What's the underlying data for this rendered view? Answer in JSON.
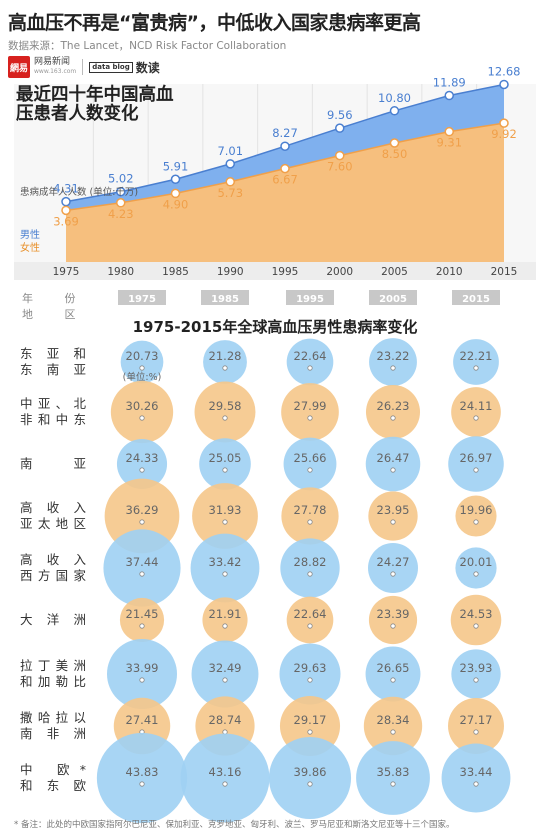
{
  "header": {
    "title": "高血压不再是“富贵病”，中低收入国家患病率更高",
    "source": "数据来源：The Lancet，NCD Risk Factor Collaboration",
    "logo_mark": "網易",
    "logo_name": "网易新闻",
    "logo_url": "www.163.com",
    "datablog_mark": "data blog",
    "datablog_name": "数读"
  },
  "colors": {
    "male": "#4a7fd0",
    "male_fill": "#7fb0ee",
    "female": "#f0a04a",
    "female_fill": "#f6bf7e",
    "bubble_blue": "#9fd0f3",
    "bubble_orange": "#f5c68a",
    "year_tab": "#c8c8c8"
  },
  "chart_data": [
    {
      "type": "area",
      "title": "最近四十年中国高血压患者人数变化",
      "ylabel": "患病成年人人数 (单位:千万)",
      "x": [
        "1975",
        "1980",
        "1985",
        "1990",
        "1995",
        "2000",
        "2005",
        "2010",
        "2015"
      ],
      "series": [
        {
          "name": "男性",
          "values": [
            4.31,
            5.02,
            5.91,
            7.01,
            8.27,
            9.56,
            10.8,
            11.89,
            12.68
          ],
          "labels": [
            "4.31",
            "5.02",
            "5.91",
            "7.01",
            "8.27",
            "9.56",
            "10.80",
            "11.89",
            "12.68"
          ]
        },
        {
          "name": "女性",
          "values": [
            3.69,
            4.23,
            4.9,
            5.73,
            6.67,
            7.6,
            8.5,
            9.31,
            9.92
          ],
          "labels": [
            "3.69",
            "4.23",
            "4.90",
            "5.73",
            "6.67",
            "7.60",
            "8.50",
            "9.31",
            "9.92"
          ]
        }
      ],
      "ylim": [
        0,
        14
      ],
      "stacked": false
    },
    {
      "type": "bubble",
      "title": "1975-2015年全球高血压男性患病率变化",
      "unit_note": "(单位:%)",
      "header_year": "年 份",
      "header_region": "地 区",
      "years": [
        "1975",
        "1985",
        "1995",
        "2005",
        "2015"
      ],
      "regions": [
        {
          "name": "东亚和东南亚",
          "lines": [
            "东 亚 和",
            "东 南 亚"
          ],
          "color": "blue",
          "values": [
            20.73,
            21.28,
            22.64,
            23.22,
            22.21
          ],
          "labels": [
            "20.73",
            "21.28",
            "22.64",
            "23.22",
            "22.21"
          ]
        },
        {
          "name": "中亚、北非和中东",
          "lines": [
            "中亚、北",
            "非和中东"
          ],
          "color": "orange",
          "values": [
            30.26,
            29.58,
            27.99,
            26.23,
            24.11
          ],
          "labels": [
            "30.26",
            "29.58",
            "27.99",
            "26.23",
            "24.11"
          ]
        },
        {
          "name": "南亚",
          "lines": [
            "南 亚"
          ],
          "color": "blue",
          "values": [
            24.33,
            25.05,
            25.66,
            26.47,
            26.97
          ],
          "labels": [
            "24.33",
            "25.05",
            "25.66",
            "26.47",
            "26.97"
          ]
        },
        {
          "name": "高收入亚太地区",
          "lines": [
            "高 收 入",
            "亚太地区"
          ],
          "color": "orange",
          "values": [
            36.29,
            31.93,
            27.78,
            23.95,
            19.96
          ],
          "labels": [
            "36.29",
            "31.93",
            "27.78",
            "23.95",
            "19.96"
          ]
        },
        {
          "name": "高收入西方国家",
          "lines": [
            "高 收 入",
            "西方国家"
          ],
          "color": "blue",
          "values": [
            37.44,
            33.42,
            28.82,
            24.27,
            20.01
          ],
          "labels": [
            "37.44",
            "33.42",
            "28.82",
            "24.27",
            "20.01"
          ]
        },
        {
          "name": "大洋洲",
          "lines": [
            "大 洋 洲"
          ],
          "color": "orange",
          "values": [
            21.45,
            21.91,
            22.64,
            23.39,
            24.53
          ],
          "labels": [
            "21.45",
            "21.91",
            "22.64",
            "23.39",
            "24.53"
          ]
        },
        {
          "name": "拉丁美洲和加勒比",
          "lines": [
            "拉丁美洲",
            "和加勒比"
          ],
          "color": "blue",
          "values": [
            33.99,
            32.49,
            29.63,
            26.65,
            23.93
          ],
          "labels": [
            "33.99",
            "32.49",
            "29.63",
            "26.65",
            "23.93"
          ]
        },
        {
          "name": "撒哈拉以南非洲",
          "lines": [
            "撒哈拉以",
            "南 非 洲"
          ],
          "color": "orange",
          "values": [
            27.41,
            28.74,
            29.17,
            28.34,
            27.17
          ],
          "labels": [
            "27.41",
            "28.74",
            "29.17",
            "28.34",
            "27.17"
          ]
        },
        {
          "name": "中欧和东欧",
          "lines": [
            "中 欧*",
            "和 东 欧"
          ],
          "color": "blue",
          "values": [
            43.83,
            43.16,
            39.86,
            35.83,
            33.44
          ],
          "labels": [
            "43.83",
            "43.16",
            "39.86",
            "35.83",
            "33.44"
          ]
        }
      ]
    }
  ],
  "footnote": "* 备注：此处的中欧国家指阿尔巴尼亚、保加利亚、克罗地亚、匈牙利、波兰、罗马尼亚和斯洛文尼亚等十三个国家。"
}
